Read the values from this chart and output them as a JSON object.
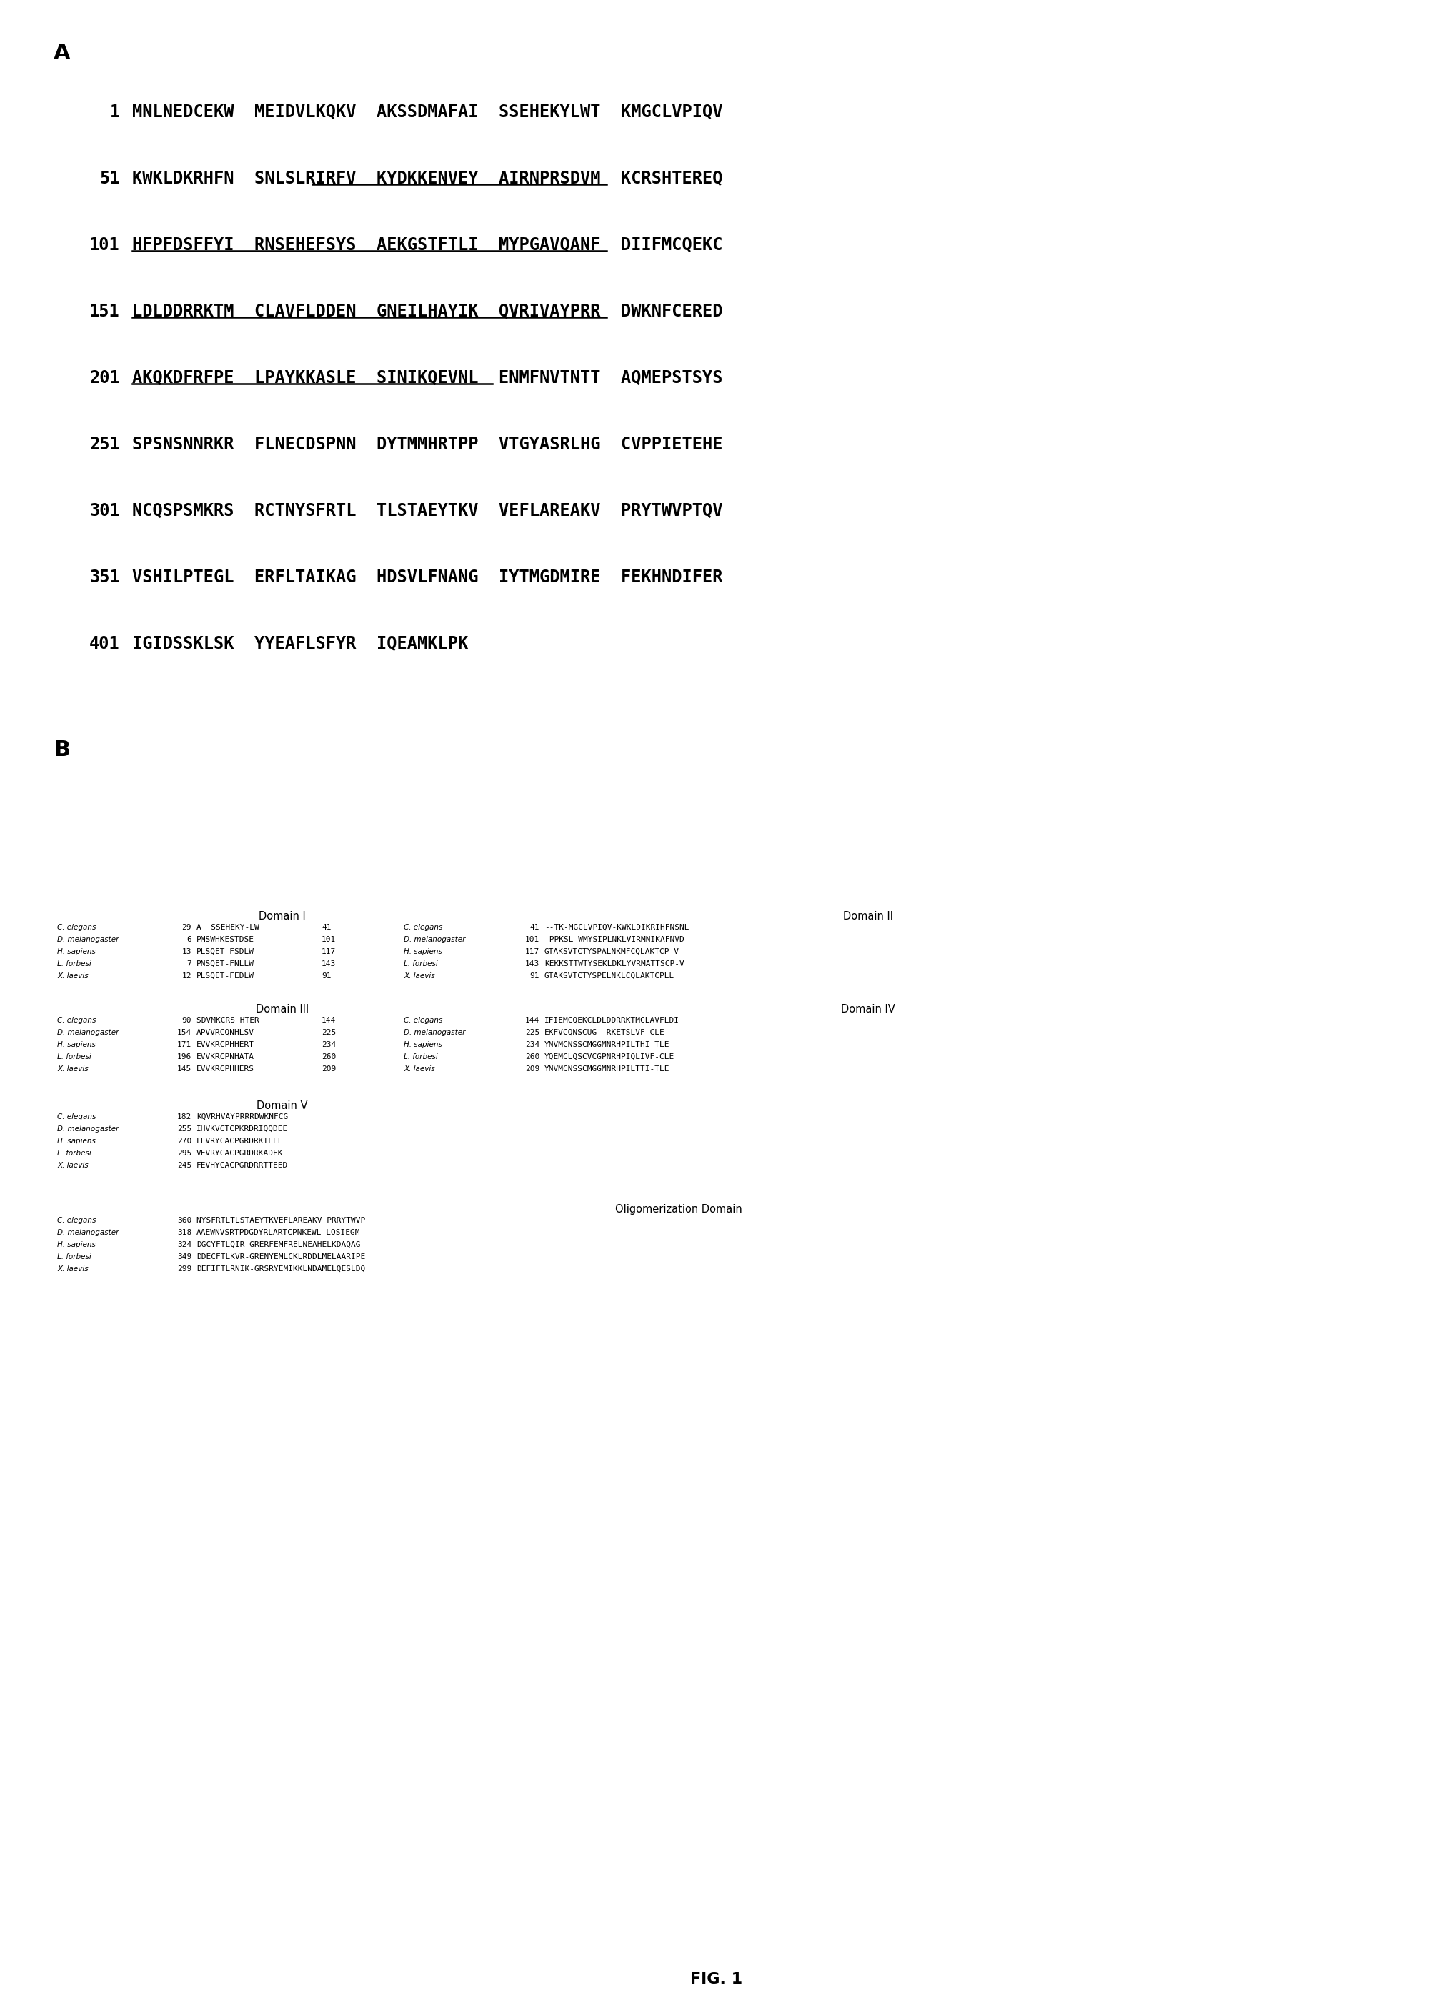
{
  "panel_a_label": "A",
  "panel_b_label": "B",
  "figure_label": "FIG. 1",
  "sequence_lines": [
    {
      "number": "1",
      "text": "MNLNEDCEKW  MEIDVLKQKV  AKSSDMAFAI  SSEHEKYLWT  KMGCLVPIQV",
      "ul": null
    },
    {
      "number": "51",
      "text": "KWKLDKRHFN  SNLSLRIRFV  KYDKKENVEY  AIRNPRSDVM  KCRSHTEREQ",
      "ul": [
        22,
        58
      ]
    },
    {
      "number": "101",
      "text": "HFPFDSFFYI  RNSEHEFSYS  AEKGSTFTLI  MYPGAVQANF  DIIFMCQEKC",
      "ul": [
        0,
        58
      ]
    },
    {
      "number": "151",
      "text": "LDLDDRRKTM  CLAVFLDDEN  GNEILHAYIK  QVRIVAYPRR  DWKNFCERED",
      "ul": [
        0,
        58
      ]
    },
    {
      "number": "201",
      "text": "AKQKDFRFPE  LPAYKKASLE  SINIKQEVNL  ENMFNVTNTT  AQMEPSTSYS",
      "ul": [
        0,
        44
      ]
    },
    {
      "number": "251",
      "text": "SPSNSNNRKR  FLNECDSPNN  DYTMMHRTPP  VTGYASRLHG  CVPPIETEHE",
      "ul": null
    },
    {
      "number": "301",
      "text": "NCQSPSMKRS  RCTNYSFRTL  TLSTAEYTKV  VEFLAREAKV  PRYTWVPTQV",
      "ul": null
    },
    {
      "number": "351",
      "text": "VSHILPTEGL  ERFLTAIKAG  HDSVLFNANG  IYTMGDMIRE  FEKHNDIFER",
      "ul": null
    },
    {
      "number": "401",
      "text": "IGIDSSKLSK  YYEAFLSFYR  IQEAMKLPK",
      "ul": null
    }
  ],
  "species": [
    "C. elegans",
    "D. melanogaster",
    "H. sapiens",
    "L. forbesi",
    "X. laevis"
  ],
  "d1_title": "Domain I",
  "d1_nums_left": [
    "29",
    "6",
    "13",
    "7",
    "12"
  ],
  "d1_seqs_left": [
    "A  SSEHEKY-LW",
    "PMSWHKESTDSE",
    "PLSQET-FSDLW",
    "PNSQET-FNLLW",
    "PLSQET-FEDLW"
  ],
  "d1_nums_right": [
    "41",
    "101",
    "117",
    "143",
    "91"
  ],
  "d2_title": "Domain II",
  "d2_nums_left": [
    "41",
    "101",
    "117",
    "143",
    "91"
  ],
  "d2_seqs_right": [
    "--TK-MGCLVPIQV-KWKLDIKRIHFNSNL",
    "-PPKSL-WMYSIPLNKLVIRMNIKAFNVD",
    "GTAKSVTCTYSPALNKMFCQLAKTCP-V",
    "KEKKSTTWTYSEKLDKLYVRMATTSCP-V",
    "GTAKSVTCTYSPELNKLCQLAKTCPLL"
  ],
  "d3_title": "Domain III",
  "d3_nums_left": [
    "90",
    "154",
    "171",
    "196",
    "145"
  ],
  "d3_seqs_left": [
    "SDVMKCRS HTER",
    "APVVRCQNHLSV",
    "EVVKRCPHHERT",
    "EVVKRCPNHATA",
    "EVVKRCPHHERS"
  ],
  "d3_nums_right": [
    "144",
    "225",
    "234",
    "260",
    "209"
  ],
  "d4_title": "Domain IV",
  "d4_seqs_right": [
    "IFIEMCQEKCLDLDDRRKTMCLAVFLDI",
    "EKFVCQNSCUG--RKETSLVF-CLE",
    "YNVMCNSSCMGGMNRHPILTHI-TLE",
    "YQEMCLQSCVCGPNRHPIQLIVF-CLE",
    "YNVMCNSSCMGGMNRHPILTTI-TLE"
  ],
  "d5_title": "Domain V",
  "d5_nums_left": [
    "182",
    "255",
    "270",
    "295",
    "245"
  ],
  "d5_seqs": [
    "KQVRHVAYPRRRDWKNFCG",
    "IHVKVCTCPKRDRIQQDEE",
    "FEVRYCACPGRDRKTEEL",
    "VEVRYCACPGRDRKADEK",
    "FEVHYCACPGRDRRTTEED"
  ],
  "oligo_title": "Oligomerization Domain",
  "oligo_nums_left": [
    "360",
    "318",
    "324",
    "349",
    "299"
  ],
  "oligo_seqs": [
    "NYSFRTLTLSTAEYTKVEFLAREAKV PRRYTWVP",
    "AAEWNVSRTPDGDYRLARTCPNKEWL-LQSIEGM",
    "DGCYFTLQIR-GRERFEMFRELNEAHELKDAQAG",
    "DDECFTLKVR-GRENYEMLCKLRDDLMELAARIPE",
    "DEFIFTLRNIK-GRSRYEMIKKLNDAMELQESLDQ"
  ]
}
